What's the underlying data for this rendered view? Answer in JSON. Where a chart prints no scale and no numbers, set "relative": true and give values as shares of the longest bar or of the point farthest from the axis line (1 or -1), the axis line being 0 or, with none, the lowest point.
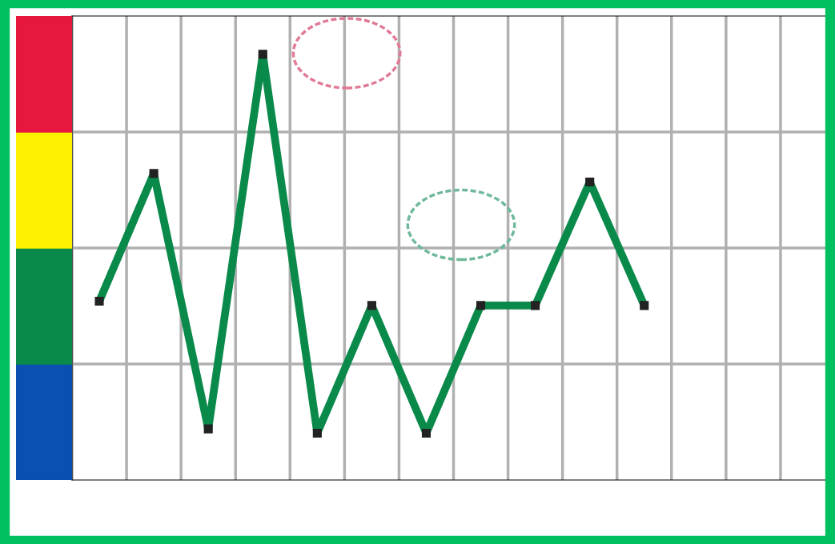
{
  "chart_data": {
    "type": "line",
    "relative": true,
    "categories": [
      null,
      null,
      null,
      null,
      null,
      null,
      null,
      null,
      null,
      null,
      null,
      null,
      null,
      null
    ],
    "series": [
      {
        "color": "#0a8a4a",
        "values": [
          0.42,
          0.72,
          0.12,
          1,
          0.11,
          0.41,
          0.11,
          0.41,
          0.41,
          0.7,
          0.41,
          null,
          null,
          null
        ]
      }
    ],
    "grid": true,
    "marker": "square",
    "line_style": "solid"
  }
}
